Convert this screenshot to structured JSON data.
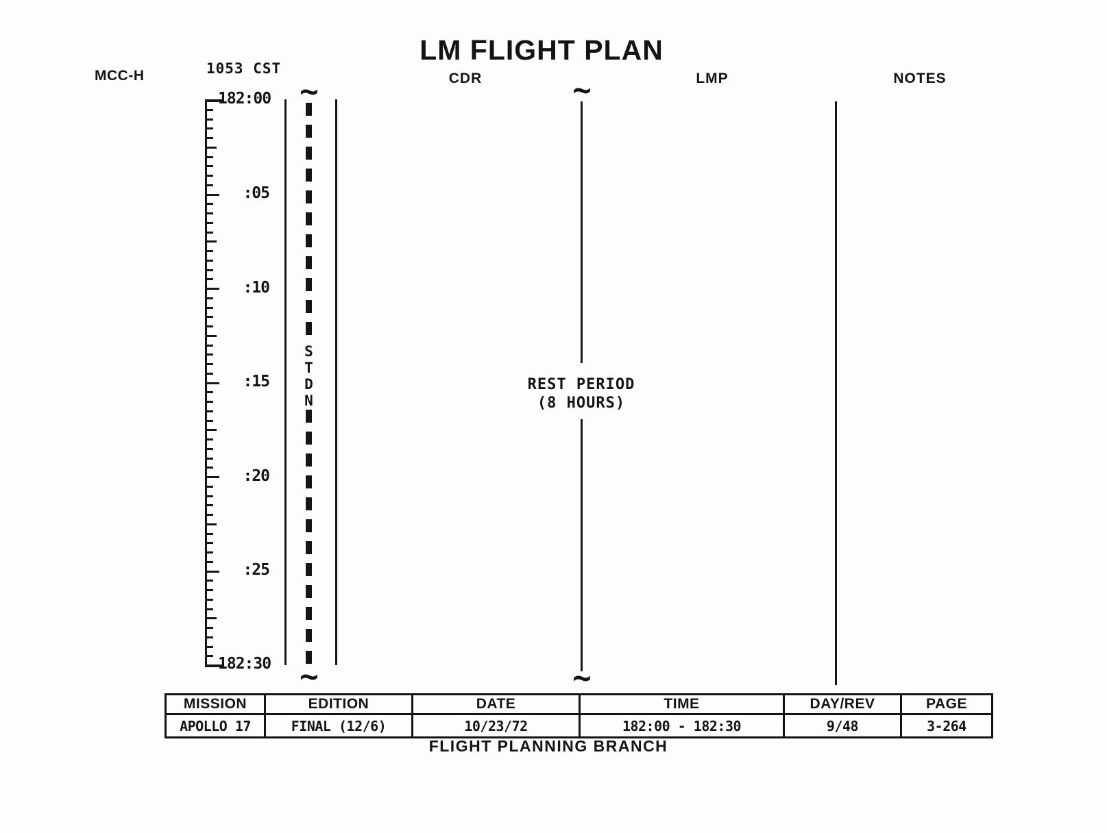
{
  "page": {
    "title": "LM FLIGHT PLAN",
    "footer": "FLIGHT PLANNING BRANCH"
  },
  "columns": {
    "mcc_h": "MCC-H",
    "cdr": "CDR",
    "lmp": "LMP",
    "notes": "NOTES"
  },
  "timeline": {
    "cst_label": "1053 CST",
    "start_label": "182:00",
    "end_label": "182:30",
    "tick_labels": [
      ":05",
      ":10",
      ":15",
      ":20",
      ":25"
    ],
    "stdn_letters": [
      "S",
      "T",
      "D",
      "N"
    ],
    "squiggle_glyph": "~"
  },
  "activities": {
    "rest_period_line1": "REST PERIOD",
    "rest_period_line2": "(8 HOURS)"
  },
  "info_table": {
    "headers": [
      "MISSION",
      "EDITION",
      "DATE",
      "TIME",
      "DAY/REV",
      "PAGE"
    ],
    "values": [
      "APOLLO 17",
      "FINAL (12/6)",
      "10/23/72",
      "182:00 - 182:30",
      "9/48",
      "3-264"
    ]
  }
}
